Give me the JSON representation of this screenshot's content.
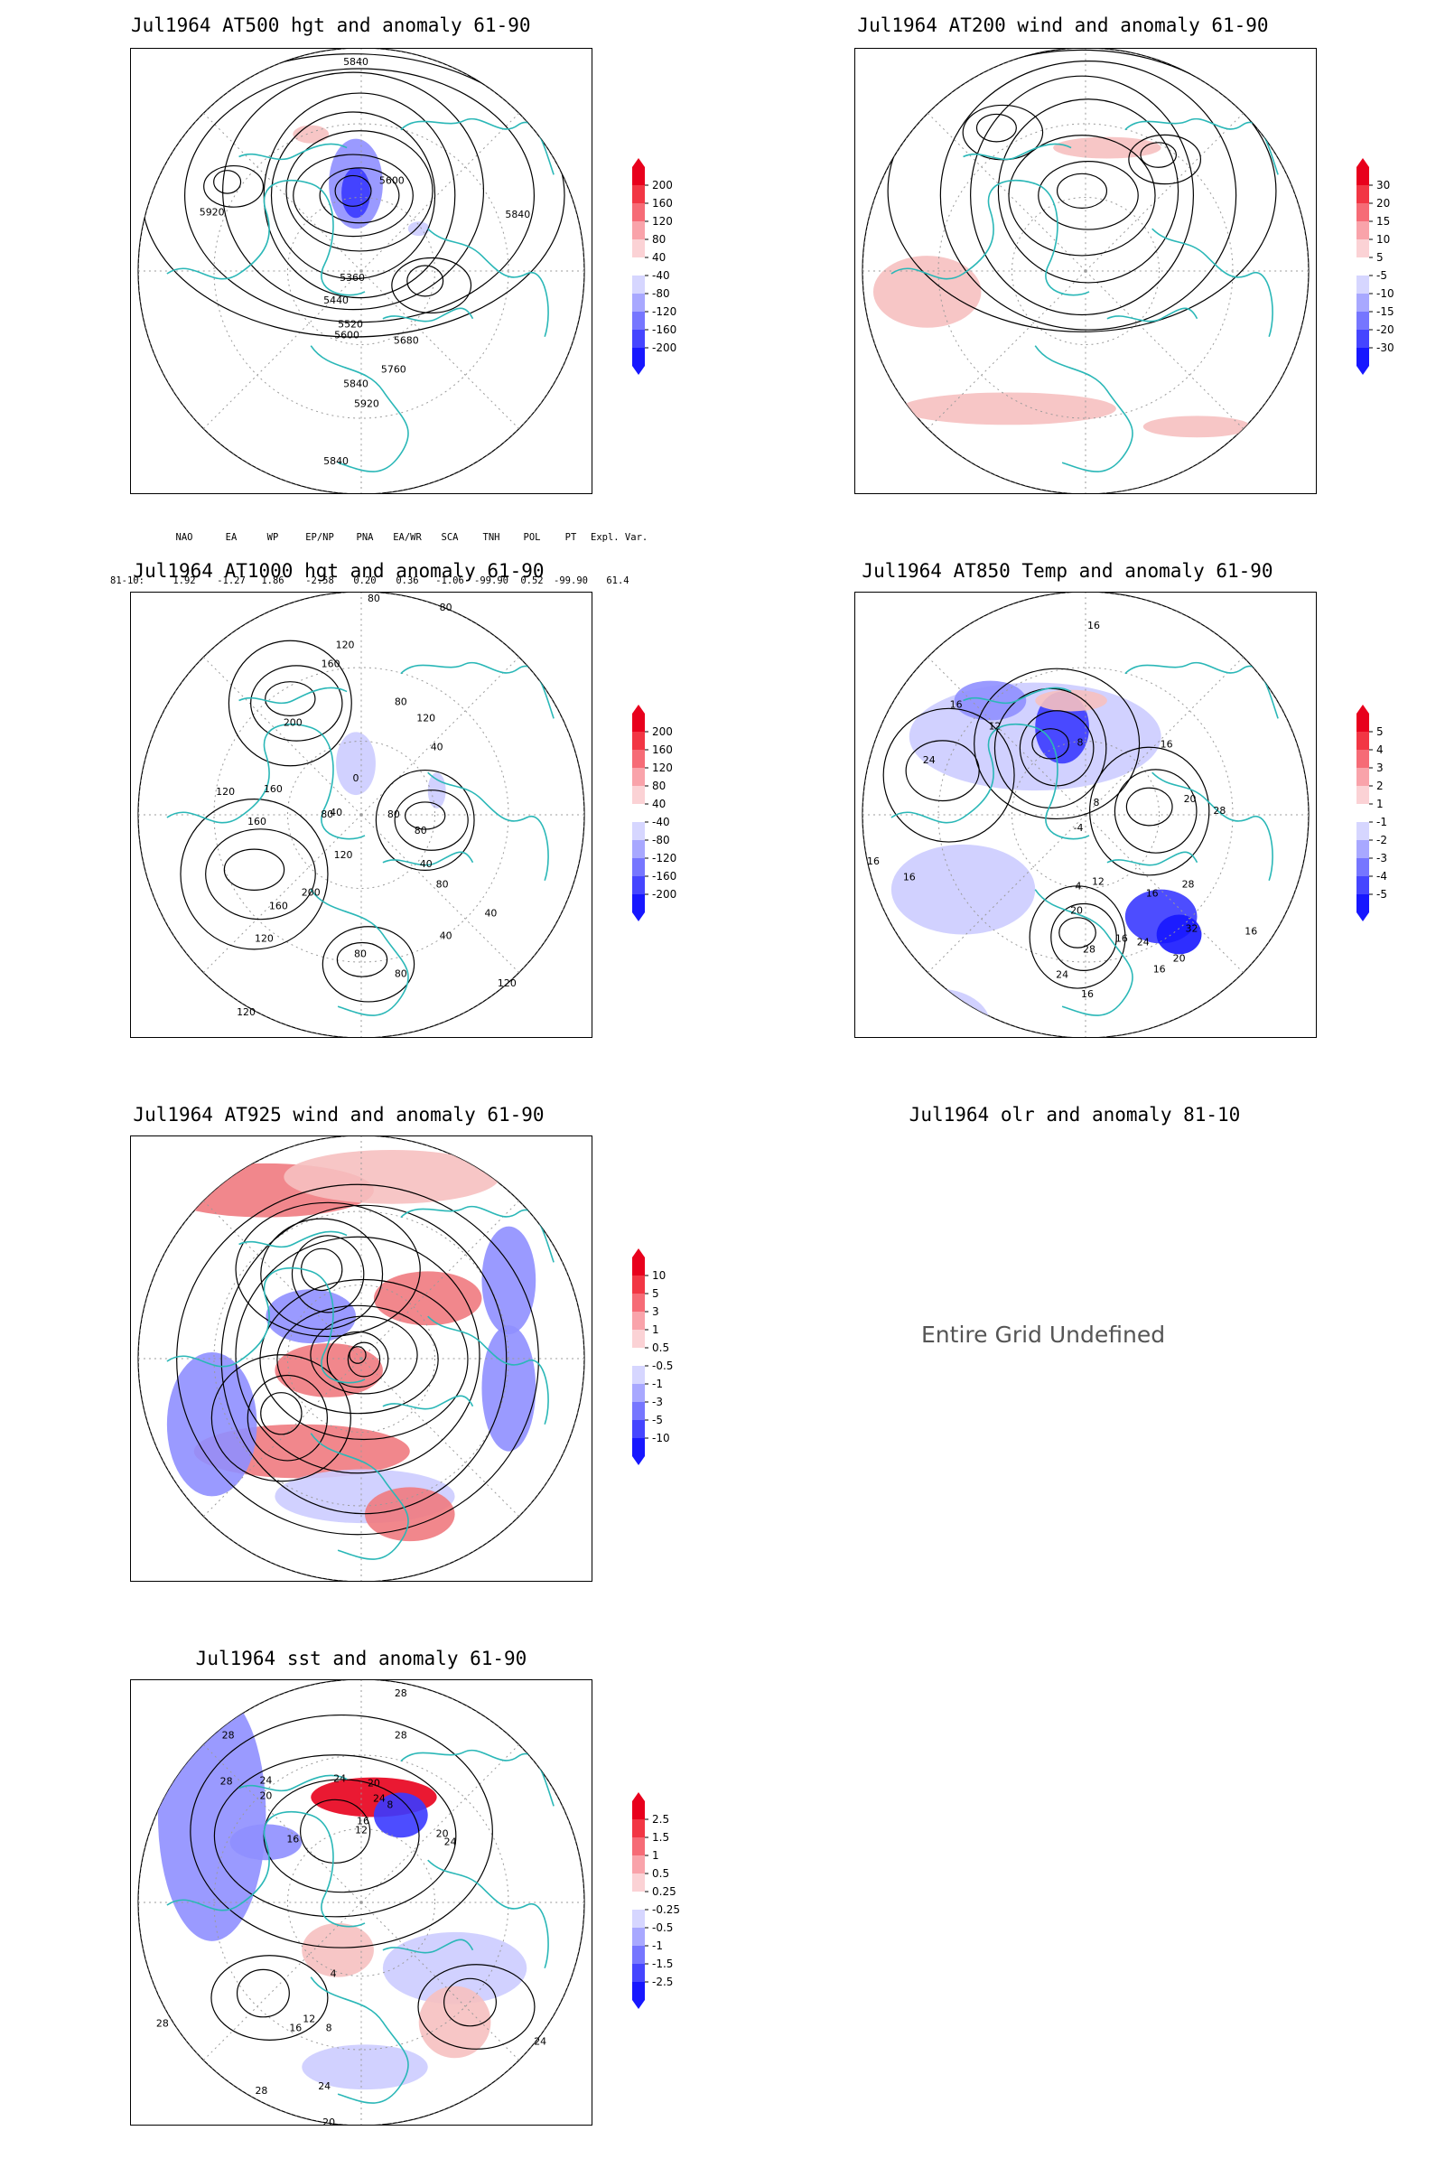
{
  "panels": [
    {
      "id": "p500",
      "title": "Jul1964 AT500 hgt and anomaly 61-90",
      "field": "hgt",
      "contour_labels": [
        "5840",
        "5600",
        "5840",
        "5920",
        "5360",
        "5440",
        "5520",
        "5600",
        "5680",
        "5760",
        "5840",
        "5920",
        "5840"
      ],
      "colorbar": {
        "levels": [
          "200",
          "160",
          "120",
          "80",
          "40",
          "-40",
          "-80",
          "-120",
          "-160",
          "-200"
        ]
      }
    },
    {
      "id": "p200",
      "title": "Jul1964 AT200 wind and anomaly 61-90",
      "field": "wind",
      "contour_labels": [],
      "colorbar": {
        "levels": [
          "30",
          "20",
          "15",
          "10",
          "5",
          "-5",
          "-10",
          "-15",
          "-20",
          "-30"
        ]
      }
    },
    {
      "id": "p1000",
      "title": "Jul1964 AT1000 hgt and anomaly 61-90",
      "field": "hgt",
      "contour_labels": [
        "80",
        "80",
        "120",
        "160",
        "200",
        "120",
        "80",
        "40",
        "160",
        "120",
        "160",
        "80",
        "0",
        "80",
        "40",
        "80",
        "120",
        "40",
        "80",
        "200",
        "160",
        "120",
        "40",
        "80",
        "80",
        "120",
        "120",
        "40"
      ],
      "colorbar": {
        "levels": [
          "200",
          "160",
          "120",
          "80",
          "40",
          "-40",
          "-80",
          "-120",
          "-160",
          "-200"
        ]
      }
    },
    {
      "id": "p850",
      "title": "Jul1964 AT850 Temp and anomaly 61-90",
      "field": "temp",
      "contour_labels": [
        "16",
        "16",
        "12",
        "16",
        "8",
        "24",
        "8",
        "-4",
        "20",
        "28",
        "16",
        "4",
        "12",
        "16",
        "28",
        "20",
        "16",
        "32",
        "24",
        "28",
        "16",
        "24",
        "20",
        "16",
        "16",
        "16"
      ],
      "colorbar": {
        "levels": [
          "5",
          "4",
          "3",
          "2",
          "1",
          "-1",
          "-2",
          "-3",
          "-4",
          "-5"
        ]
      }
    },
    {
      "id": "p925",
      "title": "Jul1964 AT925 wind and anomaly 61-90",
      "field": "wind",
      "contour_labels": [],
      "colorbar": {
        "levels": [
          "10",
          "5",
          "3",
          "1",
          "0.5",
          "-0.5",
          "-1",
          "-3",
          "-5",
          "-10"
        ]
      }
    },
    {
      "id": "polr",
      "title": "Jul1964 olr and anomaly 81-10",
      "field": "undefined",
      "message": "Entire Grid Undefined"
    },
    {
      "id": "psst",
      "title": "Jul1964 sst and anomaly 61-90",
      "field": "sst",
      "contour_labels": [
        "28",
        "28",
        "28",
        "24",
        "24",
        "20",
        "20",
        "24",
        "16",
        "12",
        "8",
        "16",
        "20",
        "24",
        "28",
        "16",
        "12",
        "8",
        "4",
        "28",
        "28",
        "24",
        "20",
        "24",
        "28",
        "24"
      ],
      "colorbar": {
        "levels": [
          "2.5",
          "1.5",
          "1",
          "0.5",
          "0.25",
          "-0.25",
          "-0.5",
          "-1",
          "-1.5",
          "-2.5"
        ]
      }
    }
  ],
  "indices": {
    "headers": [
      "NAO",
      "EA",
      "WP",
      "EP/NP",
      "PNA",
      "EA/WR",
      "SCA",
      "TNH",
      "POL",
      "PT",
      "Expl. Var."
    ],
    "row_label": "81-10:",
    "values": [
      "1.92",
      "-1.27",
      "1.86",
      "-2.58",
      "0.20",
      "0.36",
      "-1.06",
      "-99.90",
      "0.52",
      "-99.90",
      "61.4"
    ]
  },
  "colors": {
    "coast": "#2ab7b7",
    "pos_strong": "#e8001c",
    "neg_strong": "#1717ff",
    "contour": "#000000",
    "grid": "#9a9a9a"
  }
}
